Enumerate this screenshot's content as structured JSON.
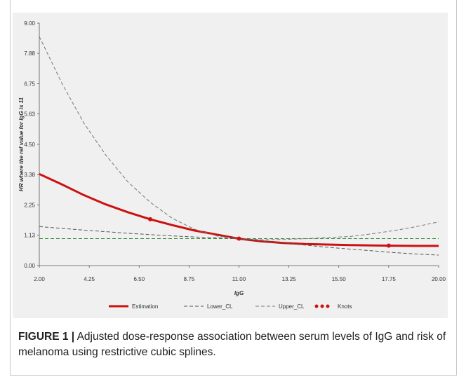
{
  "chart_data": {
    "type": "line",
    "xlabel": "IgG",
    "ylabel": "HR where the ref value for IgG is 11",
    "xlim": [
      2.0,
      20.0
    ],
    "ylim": [
      0.0,
      9.0
    ],
    "x_ticks": [
      "2.00",
      "4.25",
      "6.50",
      "8.75",
      "11.00",
      "13.25",
      "15.50",
      "17.75",
      "20.00"
    ],
    "y_ticks": [
      "0.00",
      "1.13",
      "2.25",
      "3.38",
      "4.50",
      "5.63",
      "6.75",
      "7.88",
      "9.00"
    ],
    "reference_line": {
      "y": 1.0,
      "color": "#3c8a3c"
    },
    "series": [
      {
        "name": "Estimation",
        "color": "#cc1111",
        "style": "solid",
        "x": [
          2,
          3,
          4,
          5,
          6,
          7,
          8,
          9,
          10,
          11,
          12,
          13,
          14,
          15,
          16,
          17,
          18,
          19,
          20
        ],
        "y": [
          3.4,
          3.02,
          2.62,
          2.27,
          1.98,
          1.72,
          1.5,
          1.3,
          1.15,
          1.0,
          0.9,
          0.84,
          0.8,
          0.78,
          0.76,
          0.75,
          0.74,
          0.73,
          0.73
        ]
      },
      {
        "name": "Lower_CL",
        "color": "#555555",
        "style": "dashed",
        "x": [
          2,
          3,
          4,
          5,
          6,
          7,
          8,
          9,
          10,
          11,
          12,
          13,
          14,
          15,
          16,
          17,
          18,
          19,
          20
        ],
        "y": [
          1.45,
          1.38,
          1.32,
          1.26,
          1.2,
          1.15,
          1.1,
          1.06,
          1.03,
          1.0,
          0.92,
          0.84,
          0.76,
          0.68,
          0.61,
          0.55,
          0.48,
          0.43,
          0.39
        ]
      },
      {
        "name": "Upper_CL",
        "color": "#777777",
        "style": "dashed",
        "x": [
          2,
          3,
          4,
          5,
          6,
          7,
          8,
          9,
          10,
          11,
          12,
          13,
          14,
          15,
          16,
          17,
          18,
          19,
          20
        ],
        "y": [
          8.5,
          6.8,
          5.3,
          4.1,
          3.1,
          2.35,
          1.75,
          1.35,
          1.1,
          1.0,
          0.96,
          0.97,
          1.0,
          1.04,
          1.08,
          1.18,
          1.3,
          1.45,
          1.62
        ]
      }
    ],
    "knots": {
      "name": "Knots",
      "color": "#cc1111",
      "x": [
        7.0,
        11.0,
        17.75
      ],
      "y": [
        1.72,
        1.0,
        0.74
      ]
    },
    "legend": {
      "placement": "bottom",
      "items": [
        {
          "label": "Estimation",
          "style": "solid",
          "color": "#cc1111"
        },
        {
          "label": "Lower_CL",
          "style": "dashed",
          "color": "#555555"
        },
        {
          "label": "Upper_CL",
          "style": "dashed",
          "color": "#777777"
        },
        {
          "label": "Knots",
          "style": "dots",
          "color": "#cc1111"
        }
      ]
    }
  },
  "caption": {
    "label": "FIGURE 1 |",
    "text": " Adjusted dose-response association between serum levels of IgG and risk of melanoma using restrictive cubic splines."
  }
}
